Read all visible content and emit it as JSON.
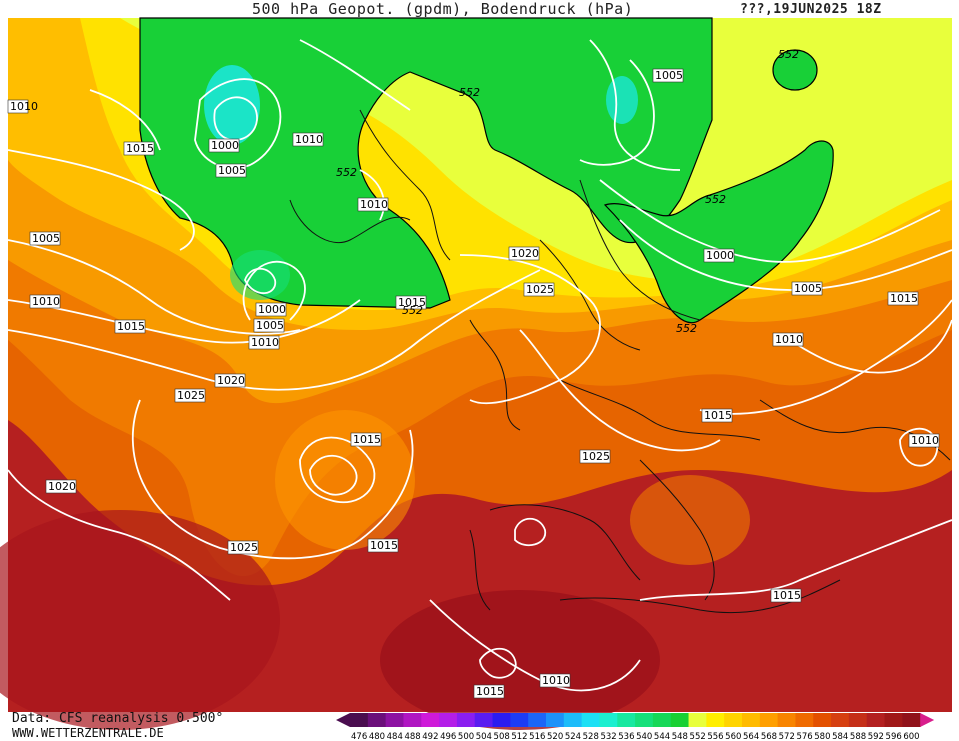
{
  "header": {
    "title": "500 hPa Geopot. (gpdm), Bodendruck (hPa)",
    "date": "???,19JUN2025 18Z"
  },
  "footer": {
    "source": "Data: CFS reanalysis 0.500°",
    "site": "WWW.WETTERZENTRALE.DE"
  },
  "legend": {
    "values": [
      "476",
      "480",
      "484",
      "488",
      "492",
      "496",
      "500",
      "504",
      "508",
      "512",
      "516",
      "520",
      "524",
      "528",
      "532",
      "536",
      "540",
      "544",
      "548",
      "552",
      "556",
      "560",
      "564",
      "568",
      "572",
      "576",
      "580",
      "584",
      "588",
      "592",
      "596",
      "600"
    ],
    "colors": [
      "#4a0d4f",
      "#6b0f7a",
      "#8d12a2",
      "#b016c2",
      "#cf1ad9",
      "#b41ee8",
      "#8a1ef0",
      "#5a1cf0",
      "#2b1cf0",
      "#1c3cf5",
      "#1c66f7",
      "#1c92f9",
      "#1cbcfa",
      "#1ce0f5",
      "#1cefd0",
      "#18e8a0",
      "#16e07a",
      "#16d858",
      "#18d033",
      "#e8ff3c",
      "#ffee00",
      "#ffd400",
      "#ffbb00",
      "#ff9f00",
      "#f88400",
      "#ef6a00",
      "#e35000",
      "#d63f10",
      "#c52f18",
      "#b32020",
      "#a01818",
      "#90121a",
      "#d81e8c"
    ]
  },
  "contours": {
    "pressure_labels": [
      {
        "id": "p1",
        "text": "1010"
      },
      {
        "id": "p2",
        "text": "1015"
      },
      {
        "id": "p3",
        "text": "1000"
      },
      {
        "id": "p4",
        "text": "1005"
      },
      {
        "id": "p5",
        "text": "1010"
      },
      {
        "id": "p6",
        "text": "1005"
      },
      {
        "id": "p7",
        "text": "1010"
      },
      {
        "id": "p8",
        "text": "1005"
      },
      {
        "id": "p9",
        "text": "1010"
      },
      {
        "id": "p10",
        "text": "1015"
      },
      {
        "id": "p11",
        "text": "1000"
      },
      {
        "id": "p12",
        "text": "1005"
      },
      {
        "id": "p13",
        "text": "1010"
      },
      {
        "id": "p14",
        "text": "1015"
      },
      {
        "id": "p15",
        "text": "1020"
      },
      {
        "id": "p16",
        "text": "1025"
      },
      {
        "id": "p17",
        "text": "1015"
      },
      {
        "id": "p18",
        "text": "1020"
      },
      {
        "id": "p19",
        "text": "1025"
      },
      {
        "id": "p20",
        "text": "1015"
      },
      {
        "id": "p21",
        "text": "1020"
      },
      {
        "id": "p22",
        "text": "1025"
      },
      {
        "id": "p23",
        "text": "1000"
      },
      {
        "id": "p24",
        "text": "1005"
      },
      {
        "id": "p25",
        "text": "1015"
      },
      {
        "id": "p26",
        "text": "1010"
      },
      {
        "id": "p27",
        "text": "1015"
      },
      {
        "id": "p28",
        "text": "1010"
      },
      {
        "id": "p29",
        "text": "1015"
      },
      {
        "id": "p30",
        "text": "1015"
      },
      {
        "id": "p31",
        "text": "1010"
      },
      {
        "id": "p32",
        "text": "1005"
      }
    ],
    "geopotential_labels": [
      {
        "id": "g1",
        "text": "552"
      },
      {
        "id": "g2",
        "text": "552"
      },
      {
        "id": "g3",
        "text": "552"
      },
      {
        "id": "g4",
        "text": "552"
      },
      {
        "id": "g5",
        "text": "552"
      },
      {
        "id": "g6",
        "text": "552"
      }
    ]
  }
}
